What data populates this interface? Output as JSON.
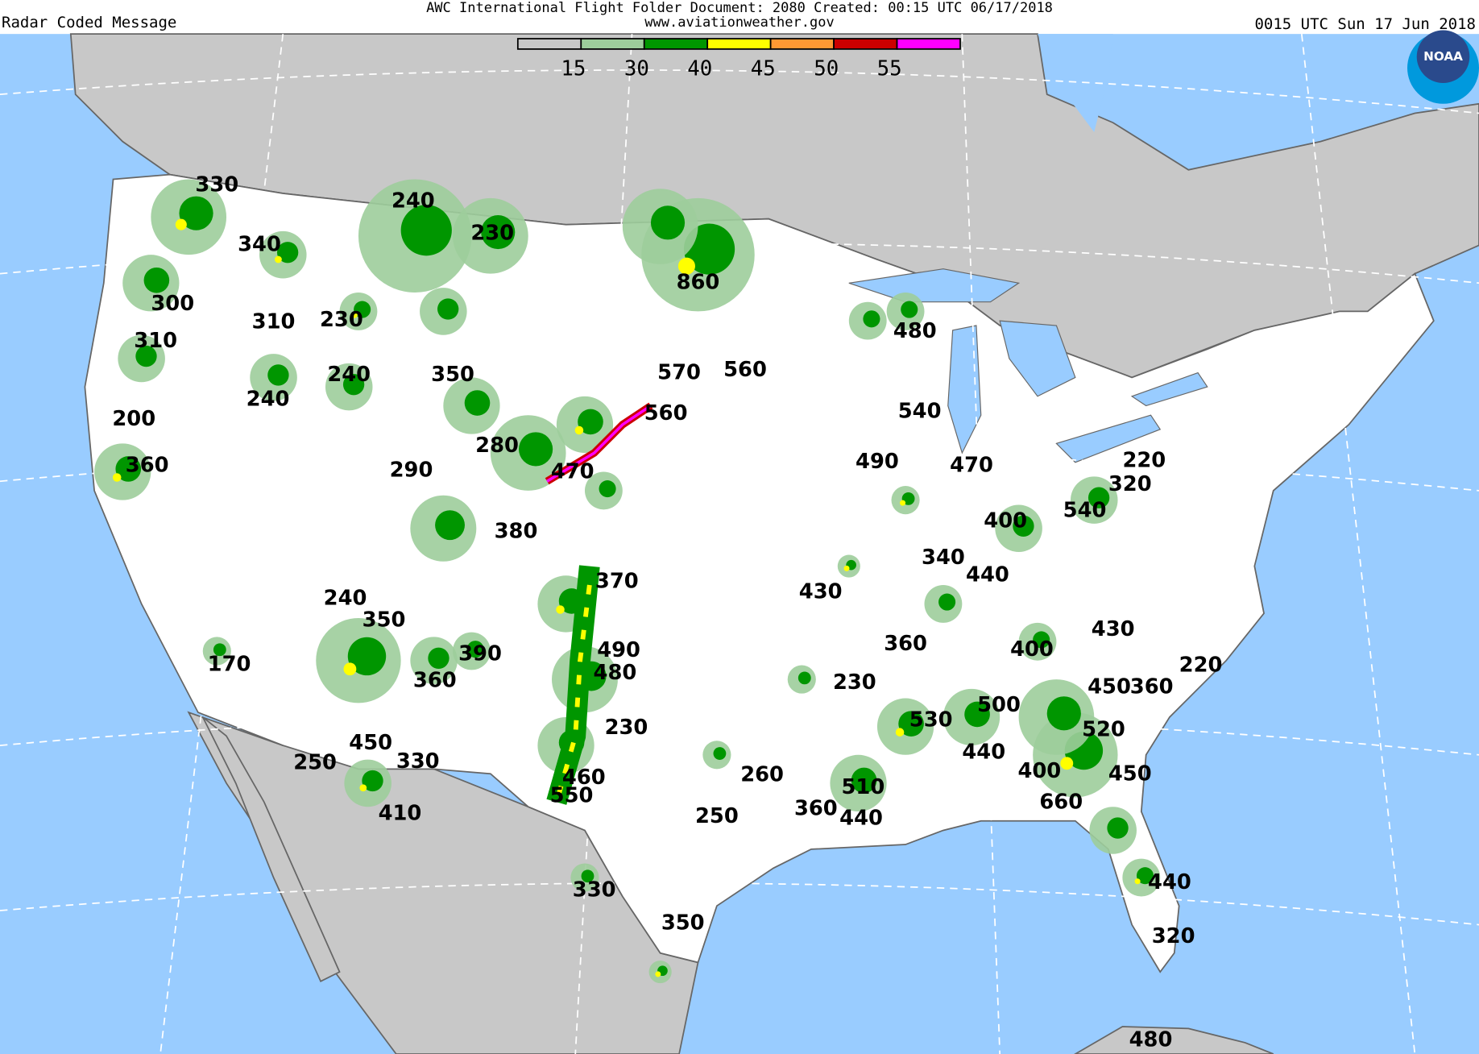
{
  "header": {
    "title": "AWC International Flight Folder Document: 2080 Created: 00:15 UTC 06/17/2018",
    "website": "www.aviationweather.gov",
    "product": "Radar Coded Message",
    "valid_time": "0015 UTC Sun 17 Jun 2018"
  },
  "legend": {
    "colors": [
      "#c8c8c8",
      "#9dcd9b",
      "#009600",
      "#ffff00",
      "#ff9933",
      "#cc0000",
      "#ff00ff"
    ],
    "labels": [
      "15",
      "30",
      "40",
      "45",
      "50",
      "55"
    ]
  },
  "logo": {
    "text": "NOAA",
    "colors": [
      "#2a4a8c",
      "#0099dd"
    ]
  },
  "map_colors": {
    "water": "#99ccff",
    "us_land": "#ffffff",
    "foreign_land": "#c8c8c8",
    "borders": "#666666"
  },
  "echo_tops": [
    "330",
    "240",
    "230",
    "340",
    "860",
    "300",
    "310",
    "230",
    "480",
    "310",
    "570",
    "560",
    "350",
    "240",
    "240",
    "560",
    "540",
    "200",
    "280",
    "490",
    "470",
    "220",
    "360",
    "290",
    "470",
    "320",
    "540",
    "400",
    "380",
    "340",
    "440",
    "370",
    "430",
    "240",
    "350",
    "430",
    "360",
    "400",
    "170",
    "390",
    "490",
    "220",
    "480",
    "360",
    "230",
    "450",
    "360",
    "500",
    "530",
    "520",
    "230",
    "450",
    "250",
    "330",
    "440",
    "400",
    "450",
    "260",
    "460",
    "510",
    "550",
    "660",
    "360",
    "440",
    "410",
    "250",
    "330",
    "440",
    "350",
    "320",
    "480"
  ]
}
